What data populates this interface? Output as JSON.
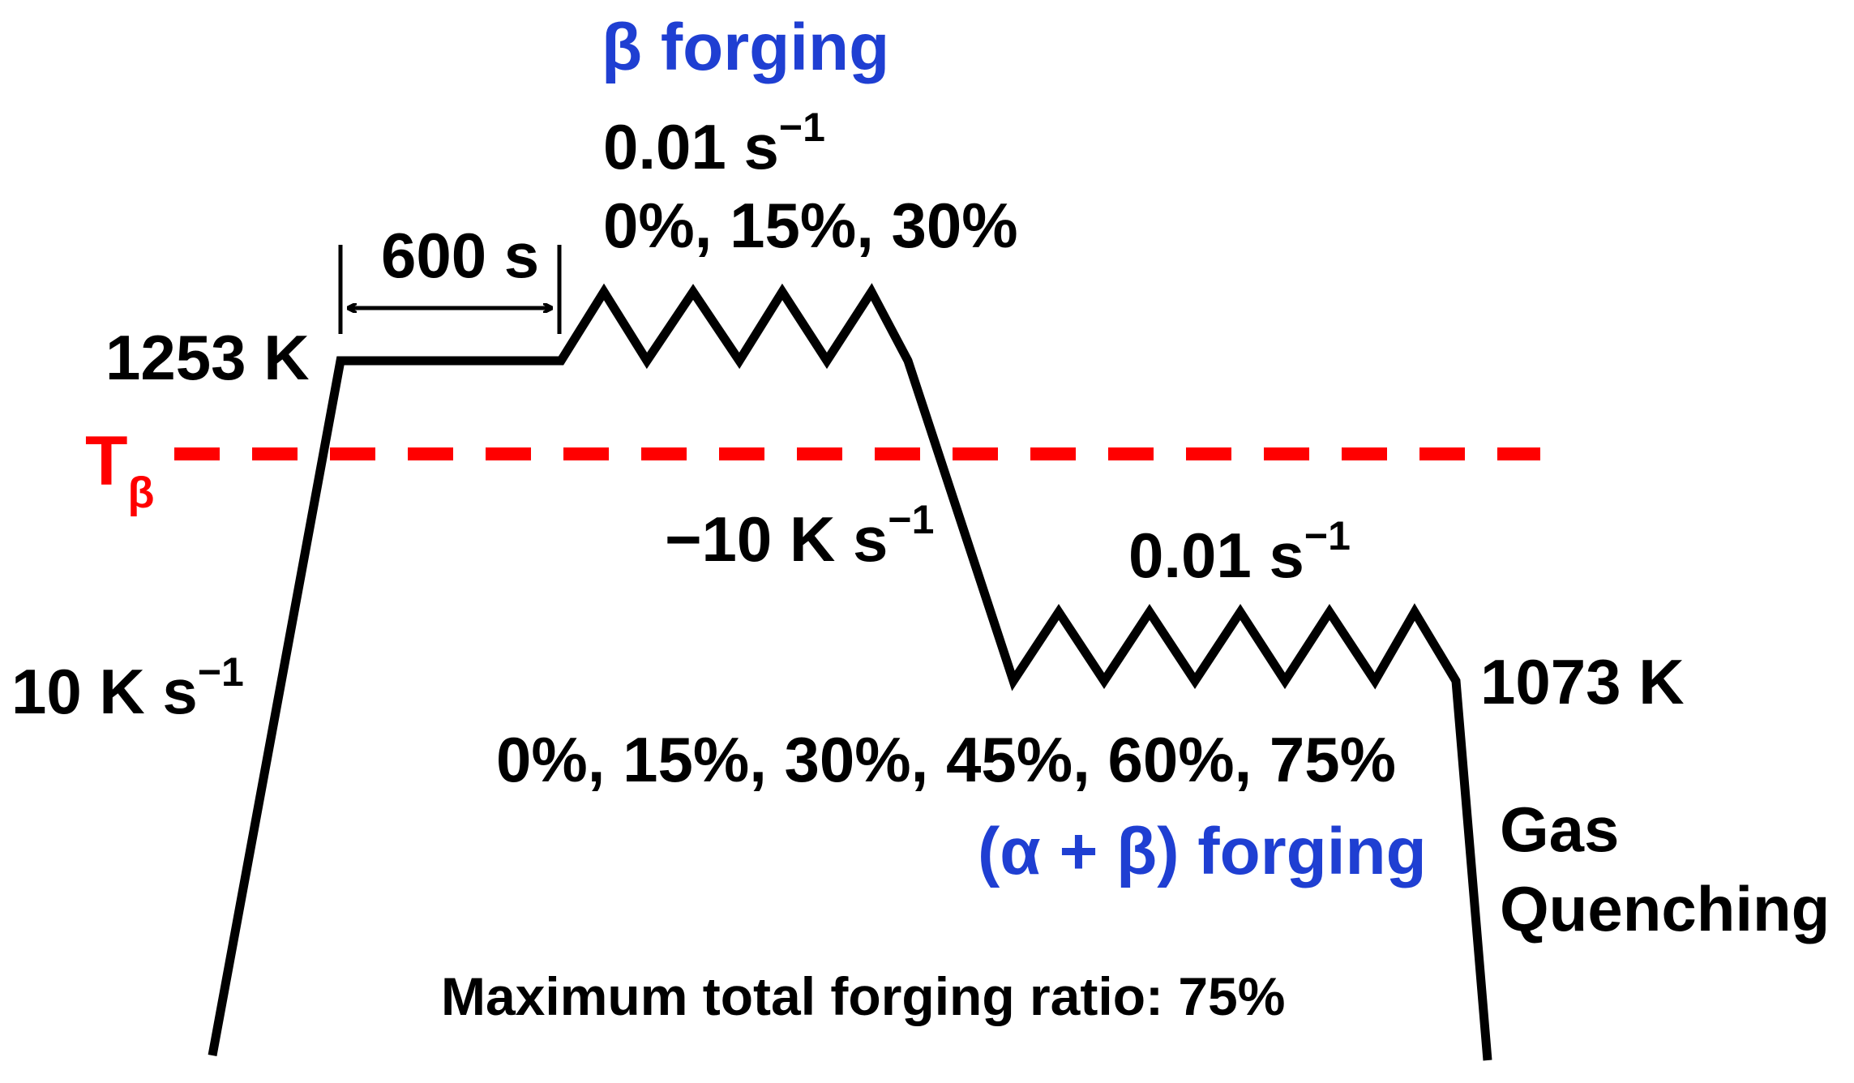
{
  "colors": {
    "line": "#000000",
    "beta_transus": "#ff0000",
    "forging_label": "#1f3fd2",
    "text": "#000000"
  },
  "labels": {
    "beta_forging": "β forging",
    "beta_rate_base": "0.01 s",
    "beta_rate_sup": "−1",
    "beta_reductions": "0%, 15%, 30%",
    "hold_time": "600 s",
    "peak_temp": "1253 K",
    "transus_base": "T",
    "transus_sub": "β",
    "cooling_rate_base": "−10 K s",
    "cooling_rate_sup": "−1",
    "heating_rate_base": "10 K s",
    "heating_rate_sup": "−1",
    "ab_rate_base": "0.01 s",
    "ab_rate_sup": "−1",
    "ab_temp": "1073 K",
    "ab_reductions": "0%, 15%, 30%, 45%, 60%, 75%",
    "ab_forging": "(α + β) forging",
    "quench_line1": "Gas",
    "quench_line2": "Quenching",
    "max_ratio": "Maximum total forging ratio: 75%"
  }
}
